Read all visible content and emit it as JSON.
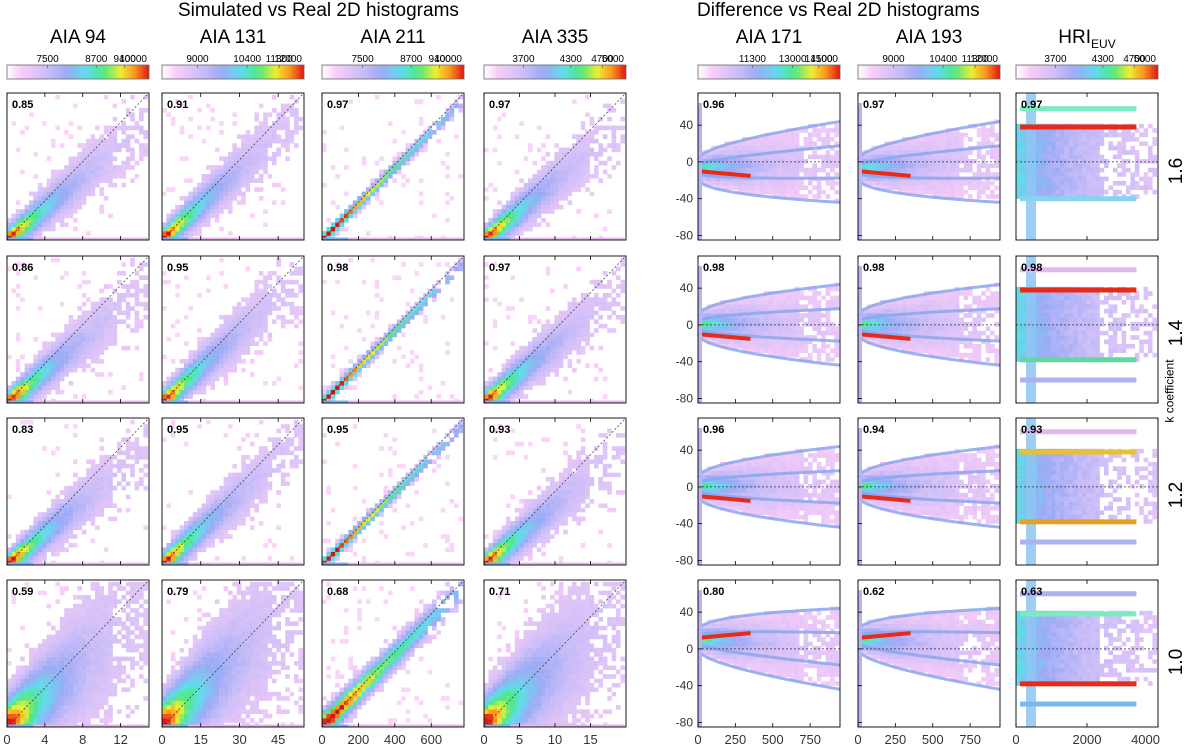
{
  "headers": {
    "left": "Simulated vs Real  2D  histograms",
    "right": "Difference vs Real  2D  histograms"
  },
  "side_axis_label": "k coefficient",
  "k_values": [
    "1.6",
    "1.4",
    "1.2",
    "1.0"
  ],
  "chart_data": [
    {
      "type": "heatmap",
      "kind": "scatter",
      "title": "AIA 94",
      "colorbar_ticks": [
        "7500",
        "8700",
        "9400",
        "10000"
      ],
      "colorbar_range": [
        6500,
        10000
      ],
      "x_ticks": [
        0,
        4,
        8,
        12
      ],
      "x_range": [
        0,
        15
      ],
      "y_range": [
        0,
        15
      ],
      "correlations": [
        "0.85",
        "0.86",
        "0.83",
        "0.59"
      ]
    },
    {
      "type": "heatmap",
      "kind": "scatter",
      "title": "AIA 131",
      "colorbar_ticks": [
        "9000",
        "10400",
        "11300",
        "12000"
      ],
      "colorbar_range": [
        8000,
        12000
      ],
      "x_ticks": [
        0,
        15,
        30,
        45
      ],
      "x_range": [
        0,
        55
      ],
      "y_range": [
        0,
        55
      ],
      "correlations": [
        "0.91",
        "0.95",
        "0.95",
        "0.79"
      ]
    },
    {
      "type": "heatmap",
      "kind": "scatter",
      "title": "AIA 211",
      "colorbar_ticks": [
        "7500",
        "8700",
        "9400",
        "10000"
      ],
      "colorbar_range": [
        6500,
        10000
      ],
      "x_ticks": [
        0,
        200,
        400,
        600
      ],
      "x_range": [
        0,
        780
      ],
      "y_range": [
        0,
        780
      ],
      "correlations": [
        "0.97",
        "0.98",
        "0.95",
        "0.68"
      ]
    },
    {
      "type": "heatmap",
      "kind": "scatter",
      "title": "AIA 335",
      "colorbar_ticks": [
        "3700",
        "4300",
        "4700",
        "5000"
      ],
      "colorbar_range": [
        3200,
        5000
      ],
      "x_ticks": [
        0,
        5,
        10,
        15
      ],
      "x_range": [
        0,
        20
      ],
      "y_range": [
        0,
        20
      ],
      "correlations": [
        "0.97",
        "0.97",
        "0.93",
        "0.71"
      ]
    },
    {
      "type": "heatmap",
      "kind": "difference",
      "title": "AIA 171",
      "colorbar_ticks": [
        "11300",
        "13000",
        "14100",
        "15000"
      ],
      "colorbar_range": [
        9000,
        15000
      ],
      "x_ticks": [
        0,
        250,
        500,
        750
      ],
      "x_range": [
        0,
        950
      ],
      "y_ticks": [
        40,
        0,
        -40,
        -80
      ],
      "y_range": [
        -85,
        75
      ],
      "correlations": [
        "0.96",
        "0.98",
        "0.96",
        "0.80"
      ]
    },
    {
      "type": "heatmap",
      "kind": "difference",
      "title": "AIA 193",
      "colorbar_ticks": [
        "9000",
        "10400",
        "11300",
        "12000"
      ],
      "colorbar_range": [
        8000,
        12000
      ],
      "x_ticks": [
        0,
        250,
        500,
        750
      ],
      "x_range": [
        0,
        950
      ],
      "y_ticks": [
        40,
        0,
        -40,
        -80
      ],
      "y_range": [
        -85,
        75
      ],
      "correlations": [
        "0.97",
        "0.98",
        "0.94",
        "0.62"
      ]
    },
    {
      "type": "heatmap",
      "kind": "hri",
      "title": "HRI",
      "title_subscript": "EUV",
      "colorbar_ticks": [
        "3700",
        "4300",
        "4700",
        "5000"
      ],
      "colorbar_range": [
        3200,
        5000
      ],
      "x_ticks": [
        0,
        2000,
        4000
      ],
      "x_range": [
        0,
        4000
      ],
      "y_range": [
        -85,
        75
      ],
      "correlations": [
        "0.97",
        "0.98",
        "0.93",
        "0.63"
      ]
    }
  ]
}
